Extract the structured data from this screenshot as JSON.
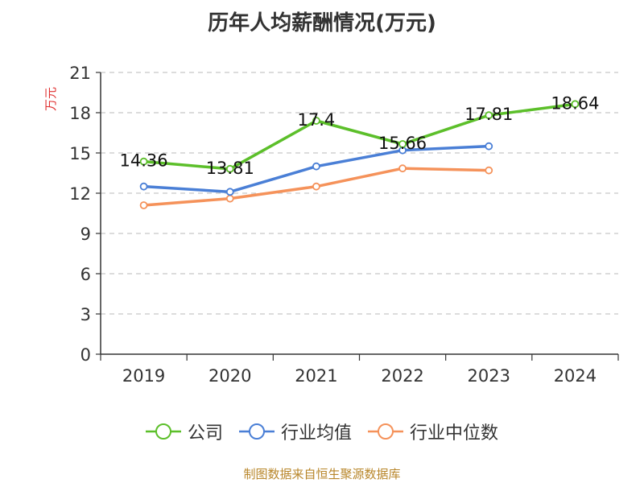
{
  "chart_data": {
    "type": "line",
    "title": "历年人均薪酬情况(万元)",
    "ylabel": "万元",
    "xlabel": "",
    "categories": [
      "2019",
      "2020",
      "2021",
      "2022",
      "2023",
      "2024"
    ],
    "ylim": [
      0,
      21
    ],
    "yticks": [
      0,
      3,
      6,
      9,
      12,
      15,
      18,
      21
    ],
    "grid": true,
    "legend_position": "bottom",
    "series": [
      {
        "name": "公司",
        "color": "#5cbf2a",
        "values": [
          14.36,
          13.81,
          17.4,
          15.66,
          17.81,
          18.64
        ],
        "labels": [
          "14.36",
          "13.81",
          "17.4",
          "15.66",
          "17.81",
          "18.64"
        ]
      },
      {
        "name": "行业均值",
        "color": "#4a7fd6",
        "values": [
          12.5,
          12.1,
          14.0,
          15.2,
          15.5,
          null
        ],
        "labels": []
      },
      {
        "name": "行业中位数",
        "color": "#f5925a",
        "values": [
          11.1,
          11.6,
          12.5,
          13.85,
          13.7,
          null
        ],
        "labels": []
      }
    ]
  },
  "source": "制图数据来自恒生聚源数据库"
}
